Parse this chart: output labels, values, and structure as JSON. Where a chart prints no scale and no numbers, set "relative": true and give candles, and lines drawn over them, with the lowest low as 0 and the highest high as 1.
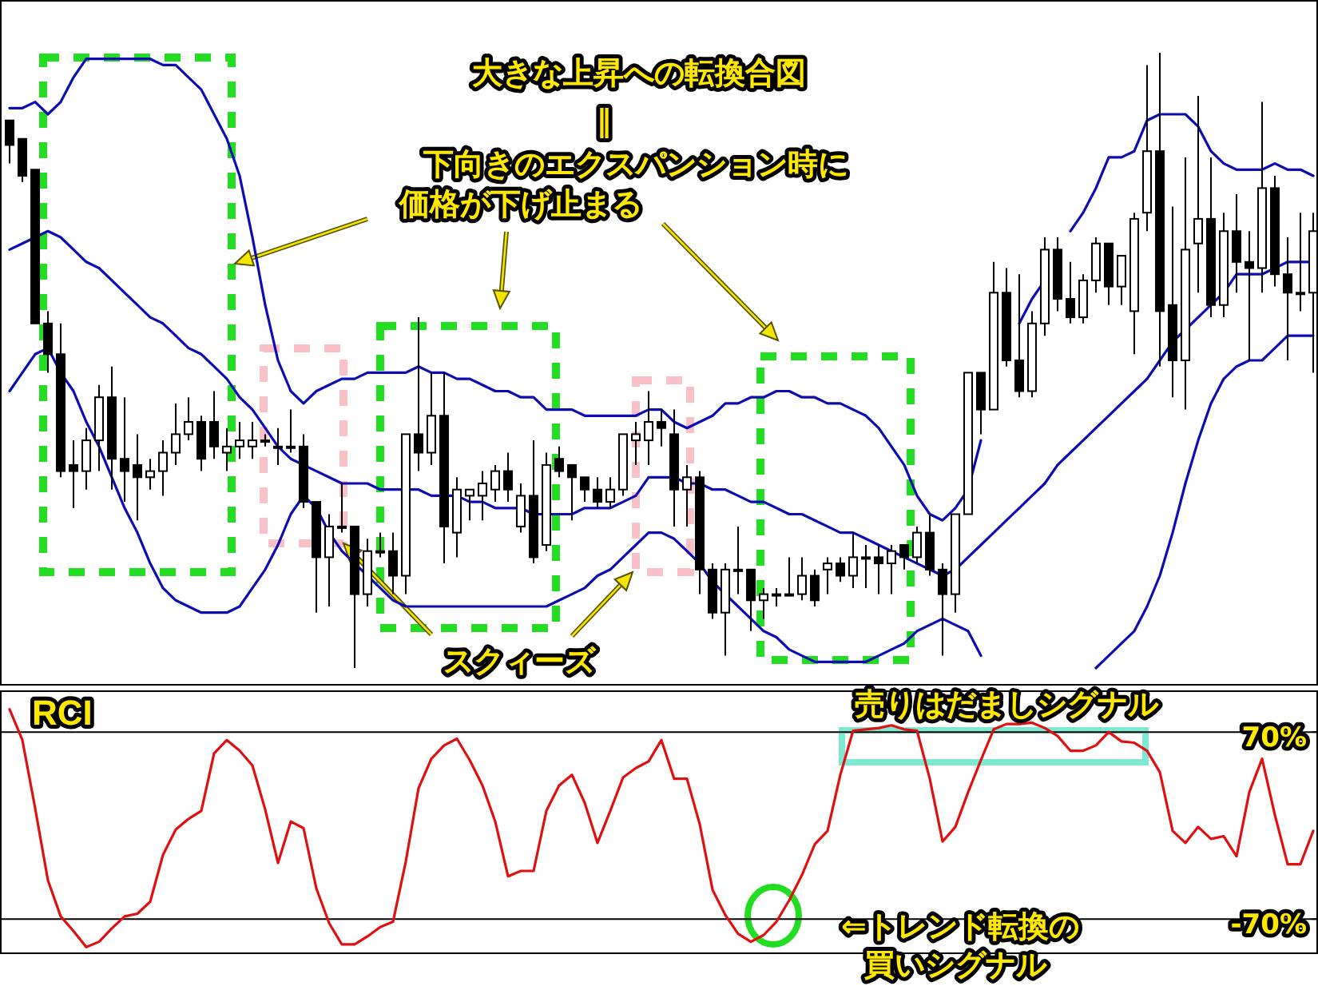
{
  "chart_data": [
    {
      "type": "candlestick",
      "relative": true,
      "categories": [
        null,
        null,
        null,
        null,
        null,
        null,
        null,
        null,
        null,
        null,
        null,
        null,
        null,
        null,
        null,
        null,
        null,
        null,
        null,
        null,
        null,
        null,
        null,
        null,
        null,
        null,
        null,
        null,
        null,
        null,
        null,
        null,
        null,
        null,
        null,
        null,
        null,
        null,
        null,
        null,
        null,
        null,
        null,
        null,
        null,
        null,
        null,
        null,
        null,
        null,
        null,
        null,
        null,
        null,
        null,
        null,
        null,
        null,
        null,
        null,
        null,
        null,
        null,
        null,
        null,
        null,
        null,
        null,
        null,
        null,
        null,
        null,
        null,
        null,
        null,
        null,
        null,
        null,
        null,
        null,
        null,
        null,
        null,
        null,
        null,
        null,
        null,
        null,
        null,
        null,
        null,
        null,
        null,
        null,
        null,
        null,
        null,
        null,
        null,
        null,
        null,
        null,
        null
      ],
      "ohlc": [
        [
          0.89,
          0.89,
          0.82,
          0.85
        ],
        [
          0.86,
          0.86,
          0.79,
          0.8
        ],
        [
          0.81,
          0.81,
          0.56,
          0.56
        ],
        [
          0.56,
          0.58,
          0.48,
          0.51
        ],
        [
          0.51,
          0.56,
          0.31,
          0.32
        ],
        [
          0.33,
          0.37,
          0.26,
          0.32
        ],
        [
          0.32,
          0.39,
          0.29,
          0.37
        ],
        [
          0.37,
          0.46,
          0.32,
          0.44
        ],
        [
          0.44,
          0.49,
          0.29,
          0.34
        ],
        [
          0.34,
          0.44,
          0.27,
          0.32
        ],
        [
          0.33,
          0.38,
          0.24,
          0.31
        ],
        [
          0.31,
          0.34,
          0.29,
          0.32
        ],
        [
          0.32,
          0.37,
          0.28,
          0.35
        ],
        [
          0.35,
          0.43,
          0.33,
          0.38
        ],
        [
          0.38,
          0.44,
          0.37,
          0.4
        ],
        [
          0.4,
          0.41,
          0.32,
          0.34
        ],
        [
          0.4,
          0.45,
          0.34,
          0.36
        ],
        [
          0.35,
          0.39,
          0.32,
          0.36
        ],
        [
          0.36,
          0.4,
          0.34,
          0.37
        ],
        [
          0.36,
          0.4,
          0.34,
          0.37
        ],
        [
          0.37,
          0.38,
          0.36,
          0.37
        ],
        [
          0.36,
          0.39,
          0.33,
          0.36
        ],
        [
          0.36,
          0.42,
          0.35,
          0.36
        ],
        [
          0.36,
          0.38,
          0.26,
          0.27
        ],
        [
          0.27,
          0.27,
          0.09,
          0.18
        ],
        [
          0.18,
          0.25,
          0.1,
          0.23
        ],
        [
          0.23,
          0.3,
          0.22,
          0.23
        ],
        [
          0.23,
          0.23,
          0,
          0.12
        ],
        [
          0.12,
          0.21,
          0.1,
          0.19
        ],
        [
          0.19,
          0.22,
          0.18,
          0.19
        ],
        [
          0.19,
          0.22,
          0.12,
          0.15
        ],
        [
          0.15,
          0.38,
          0.12,
          0.38
        ],
        [
          0.38,
          0.57,
          0.32,
          0.35
        ],
        [
          0.35,
          0.48,
          0.33,
          0.41
        ],
        [
          0.41,
          0.48,
          0.17,
          0.23
        ],
        [
          0.22,
          0.31,
          0.18,
          0.29
        ],
        [
          0.28,
          0.29,
          0.24,
          0.29
        ],
        [
          0.28,
          0.32,
          0.24,
          0.3
        ],
        [
          0.29,
          0.33,
          0.27,
          0.32
        ],
        [
          0.32,
          0.35,
          0.27,
          0.29
        ],
        [
          0.23,
          0.3,
          0.22,
          0.28
        ],
        [
          0.28,
          0.37,
          0.17,
          0.18
        ],
        [
          0.2,
          0.35,
          0.19,
          0.33
        ],
        [
          0.34,
          0.36,
          0.31,
          0.32
        ],
        [
          0.33,
          0.33,
          0.24,
          0.31
        ],
        [
          0.31,
          0.31,
          0.27,
          0.29
        ],
        [
          0.29,
          0.31,
          0.26,
          0.27
        ],
        [
          0.27,
          0.31,
          0.26,
          0.29
        ],
        [
          0.29,
          0.38,
          0.28,
          0.38
        ],
        [
          0.37,
          0.4,
          0.33,
          0.38
        ],
        [
          0.37,
          0.45,
          0.33,
          0.4
        ],
        [
          0.4,
          0.42,
          0.36,
          0.39
        ],
        [
          0.38,
          0.42,
          0.23,
          0.29
        ],
        [
          0.29,
          0.33,
          0.23,
          0.31
        ],
        [
          0.31,
          0.32,
          0.12,
          0.16
        ],
        [
          0.16,
          0.17,
          0.08,
          0.09
        ],
        [
          0.09,
          0.17,
          0.02,
          0.16
        ],
        [
          0.16,
          0.23,
          0.12,
          0.16
        ],
        [
          0.16,
          0.16,
          0.06,
          0.11
        ],
        [
          0.11,
          0.13,
          0.08,
          0.12
        ],
        [
          0.12,
          0.13,
          0.1,
          0.12
        ],
        [
          0.12,
          0.18,
          0.12,
          0.12
        ],
        [
          0.12,
          0.18,
          0.11,
          0.15
        ],
        [
          0.15,
          0.16,
          0.1,
          0.11
        ],
        [
          0.16,
          0.18,
          0.12,
          0.17
        ],
        [
          0.17,
          0.18,
          0.14,
          0.15
        ],
        [
          0.15,
          0.22,
          0.13,
          0.18
        ],
        [
          0.18,
          0.2,
          0.13,
          0.18
        ],
        [
          0.18,
          0.2,
          0.12,
          0.17
        ],
        [
          0.17,
          0.2,
          0.12,
          0.19
        ],
        [
          0.2,
          0.2,
          0.16,
          0.18
        ],
        [
          0.18,
          0.23,
          0.17,
          0.22
        ],
        [
          0.22,
          0.25,
          0.15,
          0.16
        ],
        [
          0.16,
          0.17,
          0.02,
          0.12
        ],
        [
          0.12,
          0.25,
          0.09,
          0.25
        ],
        [
          0.25,
          0.48,
          0.25,
          0.48
        ],
        [
          0.48,
          0.48,
          0.38,
          0.42
        ],
        [
          0.42,
          0.66,
          0.42,
          0.61
        ],
        [
          0.61,
          0.65,
          0.49,
          0.5
        ],
        [
          0.5,
          0.64,
          0.44,
          0.45
        ],
        [
          0.45,
          0.58,
          0.44,
          0.56
        ],
        [
          0.56,
          0.7,
          0.54,
          0.68
        ],
        [
          0.68,
          0.7,
          0.58,
          0.6
        ],
        [
          0.6,
          0.66,
          0.56,
          0.57
        ],
        [
          0.57,
          0.64,
          0.56,
          0.63
        ],
        [
          0.63,
          0.7,
          0.61,
          0.69
        ],
        [
          0.69,
          0.69,
          0.59,
          0.62
        ],
        [
          0.62,
          0.67,
          0.59,
          0.67
        ],
        [
          0.58,
          0.74,
          0.51,
          0.73
        ],
        [
          0.74,
          0.98,
          0.71,
          0.84
        ],
        [
          0.84,
          1,
          0.49,
          0.58
        ],
        [
          0.59,
          0.75,
          0.44,
          0.5
        ],
        [
          0.5,
          0.83,
          0.42,
          0.68
        ],
        [
          0.69,
          0.93,
          0.61,
          0.73
        ],
        [
          0.73,
          0.83,
          0.57,
          0.59
        ],
        [
          0.59,
          0.74,
          0.57,
          0.71
        ],
        [
          0.71,
          0.77,
          0.61,
          0.66
        ],
        [
          0.66,
          0.71,
          0.5,
          0.65
        ],
        [
          0.65,
          0.92,
          0.61,
          0.78
        ],
        [
          0.78,
          0.8,
          0.62,
          0.64
        ],
        [
          0.64,
          0.7,
          0.5,
          0.61
        ],
        [
          0.61,
          0.74,
          0.58,
          0.61
        ],
        [
          0.61,
          0.74,
          0.48,
          0.71
        ]
      ],
      "series": [
        {
          "type": "line",
          "color": "#0c0cb4",
          "values": [
            0.91,
            0.91,
            0.92,
            0.9,
            0.92,
            0.96,
            0.99,
            0.99,
            0.99,
            0.99,
            0.99,
            0.99,
            0.98,
            0.98,
            0.96,
            0.94,
            0.9,
            0.86,
            0.8,
            0.7,
            0.59,
            0.5,
            0.45,
            0.43,
            0.45,
            0.46,
            0.47,
            0.47,
            0.48,
            0.48,
            0.48,
            0.48,
            0.49,
            0.48,
            0.48,
            0.47,
            0.47,
            0.46,
            0.45,
            0.45,
            0.44,
            0.44,
            0.42,
            0.42,
            0.42,
            0.41,
            0.41,
            0.41,
            0.41,
            0.41,
            0.42,
            0.42,
            0.4,
            0.39,
            0.4,
            0.41,
            0.43,
            0.43,
            0.44,
            0.44,
            0.45,
            0.45,
            0.44,
            0.44,
            0.43,
            0.43,
            0.42,
            0.41,
            0.39,
            0.36,
            0.33,
            0.28,
            0.25,
            0.24,
            0.26,
            0.29,
            0.37,
            null,
            null,
            0.56,
            0.6,
            0.63,
            null,
            0.71,
            0.74,
            0.78,
            0.83,
            0.83,
            0.84,
            0.89,
            0.9,
            0.9,
            0.9,
            0.88,
            0.84,
            0.82,
            0.81,
            0.81,
            0.81,
            0.82,
            0.81,
            0.81,
            0.8
          ]
        },
        {
          "type": "line",
          "color": "#0c0cb4",
          "values": [
            0.68,
            0.69,
            0.7,
            0.71,
            0.7,
            0.68,
            0.66,
            0.65,
            0.63,
            0.61,
            0.59,
            0.57,
            0.56,
            0.54,
            0.52,
            0.51,
            0.49,
            0.47,
            0.44,
            0.42,
            0.39,
            0.36,
            0.34,
            0.33,
            0.32,
            0.31,
            0.3,
            0.3,
            0.3,
            0.29,
            0.29,
            0.29,
            0.29,
            0.28,
            0.28,
            0.28,
            0.27,
            0.27,
            0.26,
            0.26,
            0.26,
            0.25,
            0.25,
            0.25,
            0.25,
            0.26,
            0.26,
            0.26,
            0.27,
            0.28,
            0.31,
            0.31,
            0.31,
            0.3,
            0.3,
            0.29,
            0.29,
            0.28,
            0.27,
            0.27,
            0.26,
            0.25,
            0.25,
            0.24,
            0.23,
            0.22,
            0.22,
            0.21,
            0.2,
            0.19,
            0.18,
            0.17,
            0.16,
            0.15,
            0.16,
            0.18,
            0.2,
            0.22,
            0.24,
            0.26,
            0.28,
            0.3,
            0.33,
            0.35,
            0.37,
            0.39,
            0.41,
            0.43,
            0.45,
            0.47,
            0.5,
            0.53,
            0.55,
            0.57,
            0.59,
            0.61,
            0.64,
            0.64,
            0.64,
            0.65,
            0.66,
            0.66,
            0.66
          ]
        },
        {
          "type": "line",
          "color": "#0c0cb4",
          "values": [
            0.45,
            0.48,
            0.51,
            0.52,
            0.48,
            0.45,
            0.4,
            0.36,
            0.31,
            0.26,
            0.22,
            0.17,
            0.13,
            0.11,
            0.1,
            0.09,
            0.09,
            0.09,
            0.1,
            0.13,
            0.16,
            0.2,
            0.25,
            0.28,
            0.26,
            0.22,
            0.19,
            0.17,
            0.15,
            0.13,
            0.11,
            0.1,
            0.1,
            0.1,
            0.1,
            0.1,
            0.1,
            0.1,
            0.1,
            0.1,
            0.1,
            0.1,
            0.1,
            0.11,
            0.12,
            0.13,
            0.15,
            0.16,
            0.18,
            0.2,
            0.22,
            0.22,
            0.21,
            0.19,
            0.17,
            0.14,
            0.12,
            0.1,
            0.08,
            0.06,
            0.05,
            0.03,
            0.02,
            0.01,
            0.01,
            0.01,
            0.01,
            0.01,
            0.02,
            0.03,
            0.04,
            0.06,
            0.07,
            0.08,
            0.07,
            0.06,
            0.02,
            null,
            null,
            null,
            null,
            null,
            null,
            null,
            null,
            0,
            0.02,
            0.04,
            0.06,
            0.1,
            0.15,
            0.22,
            0.3,
            0.37,
            0.43,
            0.47,
            0.49,
            0.5,
            0.5,
            0.52,
            0.54,
            0.54,
            0.54
          ]
        }
      ],
      "annotations": [
        "大きな上昇への転換合図",
        "‖",
        "下向きのエクスパンション時に",
        "価格が下げ止まる",
        "スクィーズ"
      ]
    },
    {
      "type": "line",
      "title": "RCI",
      "tick_labels": "y",
      "grid": "y",
      "ylim": [
        -95,
        100
      ],
      "yticks": [
        {
          "value": 70,
          "label": "70%"
        },
        {
          "value": -70,
          "label": "-70%"
        }
      ],
      "categories": [
        null,
        null,
        null,
        null,
        null,
        null,
        null,
        null,
        null,
        null,
        null,
        null,
        null,
        null,
        null,
        null,
        null,
        null,
        null,
        null,
        null,
        null,
        null,
        null,
        null,
        null,
        null,
        null,
        null,
        null,
        null,
        null,
        null,
        null,
        null,
        null,
        null,
        null,
        null,
        null,
        null,
        null,
        null,
        null,
        null,
        null,
        null,
        null,
        null,
        null,
        null,
        null,
        null,
        null,
        null,
        null,
        null,
        null,
        null,
        null,
        null,
        null,
        null,
        null,
        null,
        null,
        null,
        null,
        null,
        null,
        null,
        null,
        null,
        null,
        null,
        null,
        null,
        null,
        null,
        null,
        null,
        null,
        null,
        null,
        null,
        null,
        null,
        null,
        null,
        null,
        null,
        null,
        null,
        null,
        null,
        null,
        null,
        null,
        null,
        null,
        null,
        null,
        null
      ],
      "series": [
        {
          "color": "#e01010",
          "values": [
            87,
            64,
            13,
            -41,
            -68,
            -79,
            -91,
            -87,
            -77,
            -68,
            -66,
            -57,
            -22,
            -3,
            5,
            11,
            54,
            64,
            56,
            45,
            12,
            -28,
            3,
            -2,
            -47,
            -73,
            -89,
            -89,
            -83,
            -76,
            -72,
            -27,
            28,
            50,
            60,
            65,
            49,
            30,
            3,
            -38,
            -34,
            -34,
            11,
            30,
            38,
            17,
            -13,
            11,
            36,
            43,
            48,
            64,
            35,
            35,
            1,
            -48,
            -67,
            -81,
            -87,
            -82,
            -72,
            -56,
            -37,
            -14,
            -4,
            38,
            71,
            72,
            73,
            75,
            72,
            71,
            35,
            -12,
            -1,
            25,
            49,
            72,
            76,
            76,
            77,
            73,
            67,
            56,
            56,
            60,
            70,
            63,
            62,
            56,
            40,
            -4,
            -13,
            -1,
            -10,
            -8,
            -23,
            25,
            50,
            8,
            -29,
            -29,
            -4
          ]
        }
      ],
      "annotations": [
        "売りはだましシグナル",
        "⇐トレンド転換の",
        "買いシグナル"
      ]
    }
  ]
}
